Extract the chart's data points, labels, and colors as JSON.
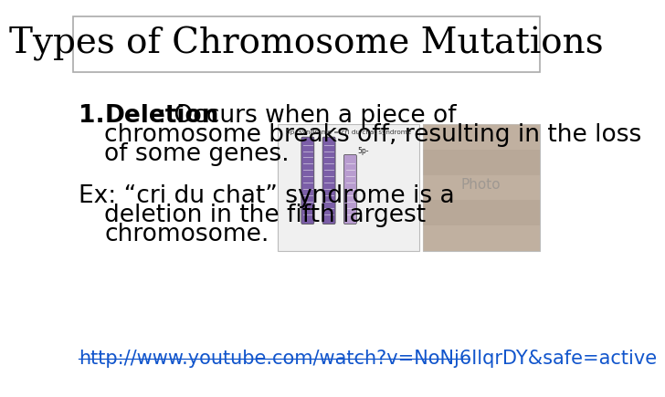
{
  "title": "Types of Chromosome Mutations",
  "title_fontsize": 28,
  "title_font": "DejaVu Serif",
  "background_color": "#ffffff",
  "border_color": "#aaaaaa",
  "text_color": "#000000",
  "link_color": "#1155cc",
  "line1_bold": "Deletion",
  "line1_rest": ": Occurs when a piece of",
  "line1b": "chromosome breaks off, resulting in the loss",
  "line1c": "of some genes.",
  "ex_line1": "Ex: “cri du chat” syndrome is a",
  "ex_line2": "deletion in the fifth largest",
  "ex_line3": "chromosome.",
  "link": "http://www.youtube.com/watch?v=NoNj6IlqrDY&safe=active",
  "body_fontsize": 19,
  "link_fontsize": 15,
  "number_label": "1."
}
